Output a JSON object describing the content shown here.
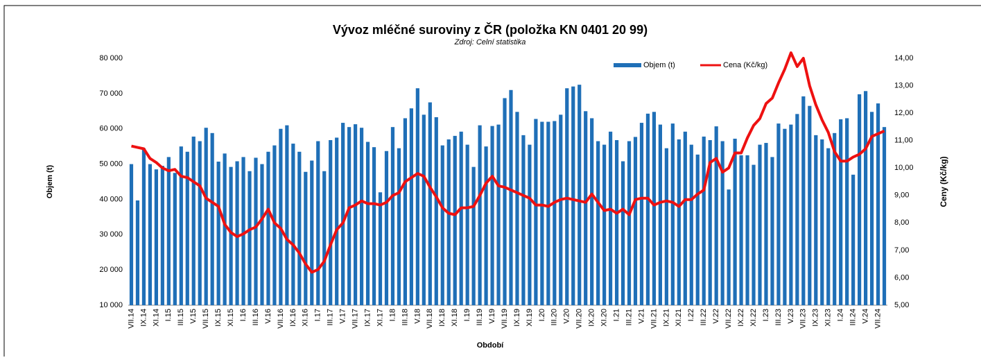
{
  "chart_data": {
    "type": "bar_line",
    "title": "Vývoz mléčné suroviny z ČR (položka KN 0401 20 99)",
    "subtitle": "Zdroj: Celní statistika",
    "x_label": "Období",
    "y_label": "Objem (t)",
    "y2_label": "Ceny (Kč/kg)",
    "categories": [
      "VII.14",
      null,
      "IX.14",
      null,
      "XI.14",
      null,
      "I.15",
      null,
      "III.15",
      null,
      "V.15",
      null,
      "VII.15",
      null,
      "IX.15",
      null,
      "XI.15",
      null,
      "I.16",
      null,
      "III.16",
      null,
      "V.16",
      null,
      "VII.16",
      null,
      "IX.16",
      null,
      "XI.16",
      null,
      "I.17",
      null,
      "III.17",
      null,
      "V.17",
      null,
      "VII.17",
      null,
      "IX.17",
      null,
      "XI.17",
      null,
      "I.18",
      null,
      "III.18",
      null,
      "V.18",
      null,
      "VII.18",
      null,
      "IX.18",
      null,
      "XI.18",
      null,
      "I.19",
      null,
      "III.19",
      null,
      "V.19",
      null,
      "VII.19",
      null,
      "IX.19",
      null,
      "XI.19",
      null,
      "I.20",
      null,
      "III.20",
      null,
      "V.20",
      null,
      "VII.20",
      null,
      "IX.20",
      null,
      "XI.20",
      null,
      "I.21",
      null,
      "III.21",
      null,
      "V.21",
      null,
      "VII.21",
      null,
      "IX.21",
      null,
      "XI.21",
      null,
      "I.22",
      null,
      "III.22",
      null,
      "V.22",
      null,
      "VII.22",
      null,
      "IX.22",
      null,
      "XI.22",
      null,
      "I.23",
      null,
      "III.23",
      null,
      "V.23",
      null,
      "VII.23",
      null,
      "IX.23",
      null,
      "XI.23",
      null,
      "I.24",
      null,
      "III.24",
      null,
      "V.24",
      null,
      "VII.24",
      null
    ],
    "series": [
      {
        "name": "Objem (t)",
        "color": "#1f6fb7",
        "kind": "bar",
        "values": [
          50000,
          39700,
          54500,
          50000,
          48500,
          49500,
          52000,
          47500,
          55000,
          53500,
          57800,
          56500,
          60300,
          58800,
          50700,
          53000,
          49200,
          50800,
          52000,
          48000,
          51800,
          50000,
          53500,
          55300,
          60000,
          61000,
          55800,
          53500,
          47800,
          51000,
          56500,
          48000,
          56800,
          57500,
          61700,
          60500,
          61300,
          60300,
          56300,
          54800,
          42000,
          53700,
          60500,
          54500,
          63000,
          65800,
          71500,
          64000,
          67500,
          63300,
          55300,
          57000,
          58000,
          59200,
          55500,
          49200,
          61000,
          55000,
          60800,
          61200,
          68700,
          71000,
          64800,
          58200,
          55500,
          62800,
          62000,
          62000,
          62200,
          64000,
          71500,
          72000,
          72500,
          65000,
          63000,
          56500,
          55500,
          59200,
          56800,
          50800,
          56500,
          57700,
          61700,
          64300,
          64800,
          61200,
          54500,
          61500,
          57000,
          59200,
          55500,
          52700,
          57800,
          56800,
          60700,
          56500,
          42800,
          57200,
          52500,
          52500,
          49800,
          55500,
          56000,
          52000,
          61500,
          60000,
          61200,
          64200,
          69200,
          66500,
          58200,
          57000,
          54500,
          58800,
          62700,
          63000,
          47000,
          69800,
          70700,
          64800,
          67200,
          60500
        ]
      },
      {
        "name": "Cena (Kč/kg)",
        "color": "#ee1111",
        "kind": "line",
        "axis": "y2",
        "values": [
          10.8,
          10.75,
          10.7,
          10.35,
          10.2,
          10.0,
          9.9,
          9.95,
          9.7,
          9.65,
          9.5,
          9.35,
          8.9,
          8.75,
          8.6,
          7.95,
          7.65,
          7.5,
          7.6,
          7.75,
          7.85,
          8.15,
          8.5,
          8.0,
          7.8,
          7.4,
          7.2,
          6.9,
          6.5,
          6.2,
          6.3,
          6.6,
          7.2,
          7.75,
          8.0,
          8.55,
          8.65,
          8.8,
          8.7,
          8.7,
          8.65,
          8.75,
          9.0,
          9.1,
          9.5,
          9.65,
          9.8,
          9.7,
          9.3,
          8.95,
          8.55,
          8.35,
          8.3,
          8.55,
          8.55,
          8.6,
          9.0,
          9.45,
          9.7,
          9.35,
          9.3,
          9.2,
          9.1,
          9.0,
          8.9,
          8.65,
          8.65,
          8.6,
          8.75,
          8.85,
          8.9,
          8.85,
          8.8,
          8.75,
          9.05,
          8.75,
          8.45,
          8.5,
          8.35,
          8.5,
          8.3,
          8.85,
          8.9,
          8.9,
          8.65,
          8.75,
          8.8,
          8.75,
          8.6,
          8.85,
          8.85,
          9.05,
          9.2,
          10.2,
          10.35,
          9.85,
          10.0,
          10.55,
          10.55,
          11.1,
          11.55,
          11.8,
          12.35,
          12.55,
          13.1,
          13.6,
          14.2,
          13.7,
          14.0,
          13.0,
          12.3,
          11.75,
          11.3,
          10.6,
          10.25,
          10.25,
          10.4,
          10.5,
          10.7,
          11.15,
          11.25,
          11.35
        ]
      }
    ],
    "ylim": [
      10000,
      80000
    ],
    "yticks": [
      {
        "value": 10000,
        "label": "10 000"
      },
      {
        "value": 20000,
        "label": "20 000"
      },
      {
        "value": 30000,
        "label": "30 000"
      },
      {
        "value": 40000,
        "label": "40 000"
      },
      {
        "value": 50000,
        "label": "50 000"
      },
      {
        "value": 60000,
        "label": "60 000"
      },
      {
        "value": 70000,
        "label": "70 000"
      },
      {
        "value": 80000,
        "label": "80 000"
      }
    ],
    "y2lim": [
      5,
      14
    ],
    "y2ticks": [
      {
        "value": 5,
        "label": "5,00"
      },
      {
        "value": 6,
        "label": "6,00"
      },
      {
        "value": 7,
        "label": "7,00"
      },
      {
        "value": 8,
        "label": "8,00"
      },
      {
        "value": 9,
        "label": "9,00"
      },
      {
        "value": 10,
        "label": "10,00"
      },
      {
        "value": 11,
        "label": "11,00"
      },
      {
        "value": 12,
        "label": "12,00"
      },
      {
        "value": 13,
        "label": "13,00"
      },
      {
        "value": 14,
        "label": "14,00"
      }
    ],
    "grid": false,
    "legend": "top-right"
  }
}
